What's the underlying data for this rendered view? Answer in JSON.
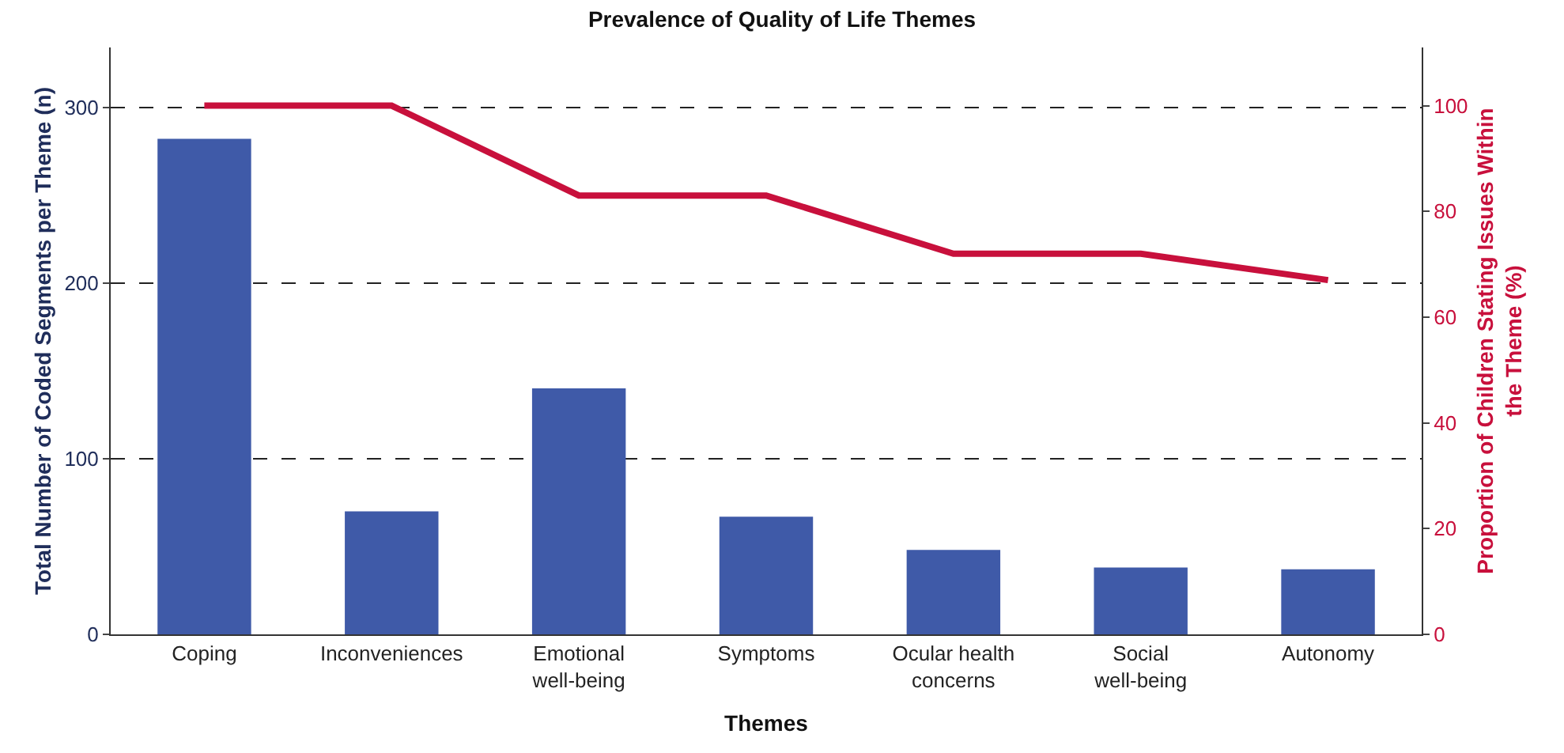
{
  "chart_data": {
    "type": "bar",
    "title": "Prevalence of Quality of Life Themes",
    "xlabel": "Themes",
    "ylabel": "Total Number of Coded Segments per Theme (n)",
    "y2label": "Proportion of Children Stating Issues Within the Theme (%)",
    "categories": [
      "Coping",
      "Inconveniences",
      "Emotional well-being",
      "Symptoms",
      "Ocular health concerns",
      "Social well-being",
      "Autonomy"
    ],
    "series": [
      {
        "color": "#3f5aa8",
        "values": [
          282,
          70,
          140,
          67,
          48,
          38,
          37
        ]
      },
      {
        "type": "line",
        "axis": "y2",
        "color": "#c8103c",
        "values": [
          100,
          100,
          83,
          83,
          72,
          72,
          67
        ]
      }
    ],
    "ylim": [
      0,
      334
    ],
    "yticks": [
      0,
      100,
      200,
      300
    ],
    "y2lim": [
      0,
      111
    ],
    "y2ticks": [
      0,
      20,
      40,
      60,
      80,
      100
    ],
    "grid": "y",
    "marker": "none",
    "line_style": "solid"
  }
}
